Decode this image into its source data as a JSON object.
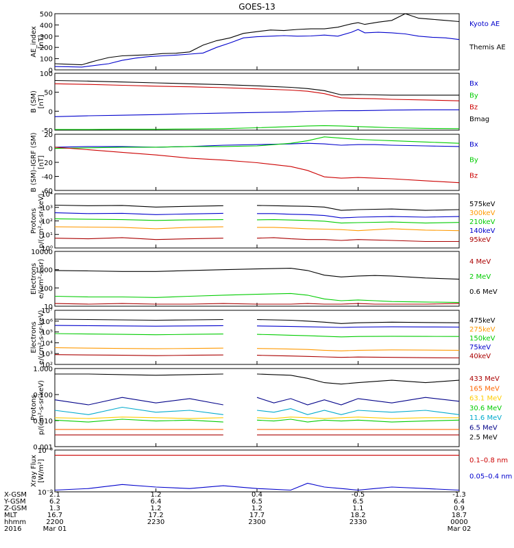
{
  "title": "GOES-13",
  "chart_data": [
    {
      "type": "line",
      "id": "ae",
      "ylabel": [
        "AE_index",
        "[nT]"
      ],
      "ylim": [
        0,
        500
      ],
      "yticks": [
        "0",
        "100",
        "200",
        "300",
        "400",
        "500"
      ],
      "x": [
        0,
        4,
        8,
        12,
        16,
        20,
        24,
        28,
        32,
        36,
        40,
        44,
        48,
        52,
        56,
        60,
        64,
        68,
        72,
        76,
        80,
        84,
        88,
        90,
        92,
        96,
        100,
        104,
        108,
        112,
        116,
        120
      ],
      "series": [
        {
          "name": "Kyoto AE",
          "color": "#0000cc",
          "values": [
            30,
            28,
            25,
            40,
            55,
            85,
            105,
            118,
            125,
            132,
            140,
            150,
            200,
            240,
            285,
            295,
            300,
            305,
            300,
            302,
            310,
            300,
            335,
            360,
            330,
            335,
            330,
            320,
            300,
            290,
            285,
            270
          ]
        },
        {
          "name": "Themis AE",
          "color": "#000000",
          "values": [
            55,
            50,
            45,
            80,
            110,
            125,
            130,
            135,
            145,
            148,
            160,
            220,
            260,
            285,
            325,
            340,
            355,
            350,
            360,
            365,
            365,
            380,
            410,
            420,
            405,
            425,
            440,
            500,
            460,
            450,
            440,
            430
          ]
        }
      ],
      "legend": [
        "Kyoto AE",
        "Themis AE"
      ]
    },
    {
      "type": "line",
      "id": "bsm",
      "ylabel": [
        "B (SM)",
        "[nT]"
      ],
      "ylim": [
        -60,
        130
      ],
      "yticks": [
        "-50",
        "0",
        "50",
        "100"
      ],
      "x": [
        0,
        10,
        20,
        30,
        40,
        50,
        60,
        70,
        75,
        80,
        85,
        90,
        95,
        100,
        110,
        120
      ],
      "series": [
        {
          "name": "Bx",
          "color": "#0000cc",
          "values": [
            -15,
            -12,
            -10,
            -8,
            -5,
            -3,
            -1,
            1,
            3,
            4,
            5,
            5,
            6,
            7,
            8,
            8
          ]
        },
        {
          "name": "By",
          "color": "#00cc00",
          "values": [
            -58,
            -58,
            -57,
            -57,
            -56,
            -55,
            -52,
            -48,
            -46,
            -45,
            -46,
            -48,
            -50,
            -52,
            -54,
            -55
          ]
        },
        {
          "name": "Bz",
          "color": "#cc0000",
          "values": [
            95,
            93,
            90,
            87,
            85,
            82,
            78,
            74,
            70,
            62,
            48,
            46,
            45,
            43,
            41,
            38
          ]
        },
        {
          "name": "Bmag",
          "color": "#000000",
          "values": [
            106,
            104,
            101,
            98,
            95,
            92,
            88,
            83,
            79,
            72,
            58,
            59,
            58,
            57,
            57,
            57
          ]
        }
      ],
      "legend": [
        "Bx",
        "By",
        "Bz",
        "Bmag"
      ]
    },
    {
      "type": "line",
      "id": "bigrf",
      "ylabel": [
        "B (SM)–IGRF (SM)",
        "[nT]"
      ],
      "ylim": [
        -65,
        22
      ],
      "yticks": [
        "-60",
        "-40",
        "-20",
        "0",
        "20"
      ],
      "x": [
        0,
        10,
        20,
        30,
        40,
        50,
        60,
        70,
        75,
        80,
        85,
        90,
        95,
        100,
        110,
        120
      ],
      "series": [
        {
          "name": "Bx",
          "color": "#0000cc",
          "values": [
            2,
            3,
            3,
            2,
            3,
            5,
            6,
            7,
            8,
            7,
            5,
            6,
            6,
            5,
            4,
            3
          ]
        },
        {
          "name": "By",
          "color": "#00cc00",
          "values": [
            0,
            1,
            2,
            2,
            3,
            3,
            4,
            8,
            12,
            18,
            16,
            14,
            13,
            12,
            10,
            8
          ]
        },
        {
          "name": "Bz",
          "color": "#cc0000",
          "values": [
            2,
            -2,
            -6,
            -10,
            -15,
            -18,
            -22,
            -28,
            -34,
            -44,
            -46,
            -45,
            -46,
            -47,
            -50,
            -53
          ]
        }
      ],
      "legend": [
        "Bx",
        "By",
        "Bz"
      ]
    },
    {
      "type": "line",
      "id": "protons-low",
      "ylabel": [
        "Protons",
        "p/(cm²-s-sr-keV)"
      ],
      "ylim": [
        1,
        100000
      ],
      "log": true,
      "yticks": [
        "10⁰",
        "10¹",
        "10²",
        "10³",
        "10⁴"
      ],
      "x": [
        0,
        10,
        20,
        30,
        40,
        50,
        55,
        60,
        65,
        70,
        75,
        80,
        85,
        90,
        100,
        110,
        120
      ],
      "series": [
        {
          "name": "575keV",
          "color": "#000000",
          "values": [
            9000,
            8000,
            8500,
            6000,
            7000,
            8000,
            null,
            8500,
            8000,
            7500,
            7000,
            6000,
            3000,
            3500,
            4000,
            3000,
            3500
          ]
        },
        {
          "name": "300keV",
          "color": "#ff9900",
          "values": [
            90,
            85,
            80,
            60,
            80,
            90,
            null,
            80,
            80,
            70,
            60,
            55,
            50,
            40,
            60,
            45,
            40
          ]
        },
        {
          "name": "210keV",
          "color": "#00cc00",
          "values": [
            500,
            450,
            420,
            350,
            400,
            420,
            null,
            400,
            420,
            380,
            350,
            300,
            200,
            220,
            250,
            200,
            230
          ]
        },
        {
          "name": "140keV",
          "color": "#0000cc",
          "values": [
            1800,
            1500,
            1600,
            1200,
            1400,
            1600,
            null,
            1500,
            1500,
            1300,
            1200,
            1000,
            600,
            700,
            800,
            700,
            800
          ]
        },
        {
          "name": "95keV",
          "color": "#aa0000",
          "values": [
            8,
            7,
            9,
            6,
            7,
            8,
            null,
            8,
            9,
            7,
            6,
            6,
            5,
            6,
            5,
            4,
            4
          ]
        }
      ],
      "legend": [
        "575keV",
        "300keV",
        "210keV",
        "140keV",
        "95keV"
      ]
    },
    {
      "type": "line",
      "id": "electrons-high",
      "ylabel": [
        "Electrons",
        "e/(cm²-s-sr)"
      ],
      "ylim": [
        10,
        10000
      ],
      "log": true,
      "yticks": [
        "10",
        "100",
        "1000",
        "10000"
      ],
      "x": [
        0,
        10,
        20,
        30,
        40,
        50,
        60,
        70,
        75,
        80,
        85,
        90,
        95,
        100,
        110,
        120
      ],
      "series": [
        {
          "name": "4 MeV",
          "color": "#aa0000",
          "values": [
            14,
            13,
            14,
            13,
            13,
            14,
            13,
            13,
            14,
            13,
            13,
            14,
            13,
            13,
            13,
            14
          ]
        },
        {
          "name": "2 MeV",
          "color": "#00cc00",
          "values": [
            35,
            32,
            32,
            30,
            35,
            40,
            45,
            50,
            40,
            25,
            20,
            22,
            20,
            18,
            17,
            16
          ]
        },
        {
          "name": "0.6 MeV",
          "color": "#000000",
          "values": [
            900,
            850,
            800,
            800,
            900,
            1000,
            1100,
            1200,
            900,
            500,
            400,
            450,
            480,
            450,
            350,
            300
          ]
        }
      ],
      "legend": [
        "4 MeV",
        "2 MeV",
        "0.6 MeV"
      ]
    },
    {
      "type": "line",
      "id": "electrons-low",
      "ylabel": [
        "Electrons",
        "e/(cm²-s-sr-keV)"
      ],
      "ylim": [
        100,
        10000000
      ],
      "log": true,
      "yticks": [
        "10²",
        "10³",
        "10⁴",
        "10⁵",
        "10⁶",
        "10⁷"
      ],
      "x": [
        0,
        10,
        20,
        30,
        40,
        50,
        55,
        60,
        65,
        70,
        75,
        80,
        85,
        90,
        100,
        110,
        120
      ],
      "series": [
        {
          "name": "475keV",
          "color": "#000000",
          "values": [
            1500000,
            1400000,
            1300000,
            1200000,
            1300000,
            1400000,
            null,
            1400000,
            1300000,
            1200000,
            1000000,
            800000,
            600000,
            700000,
            800000,
            750000,
            700000
          ]
        },
        {
          "name": "275keV",
          "color": "#ff9900",
          "values": [
            3500,
            3200,
            3000,
            2800,
            3000,
            3200,
            null,
            3000,
            2800,
            2600,
            2400,
            2000,
            1800,
            2000,
            2200,
            2100,
            2000
          ]
        },
        {
          "name": "150keV",
          "color": "#00cc00",
          "values": [
            70000,
            65000,
            60000,
            55000,
            60000,
            65000,
            null,
            60000,
            55000,
            50000,
            45000,
            40000,
            35000,
            38000,
            40000,
            39000,
            38000
          ]
        },
        {
          "name": "75keV",
          "color": "#0000cc",
          "values": [
            400000,
            380000,
            360000,
            340000,
            360000,
            380000,
            null,
            360000,
            340000,
            320000,
            300000,
            280000,
            260000,
            280000,
            300000,
            290000,
            280000
          ]
        },
        {
          "name": "40keV",
          "color": "#aa0000",
          "values": [
            800,
            750,
            700,
            650,
            700,
            750,
            null,
            700,
            650,
            600,
            550,
            500,
            450,
            480,
            450,
            420,
            400
          ]
        }
      ],
      "legend": [
        "475keV",
        "275keV",
        "150keV",
        "75keV",
        "40keV"
      ]
    },
    {
      "type": "line",
      "id": "protons-high",
      "ylabel": [
        "Protons",
        "p/(cm²-s-sr-keV)"
      ],
      "ylim": [
        0.001,
        1.5
      ],
      "log": true,
      "yticks": [
        "0.001",
        "0.010",
        "0.100",
        "1.000"
      ],
      "x": [
        0,
        10,
        20,
        30,
        40,
        50,
        55,
        60,
        65,
        70,
        75,
        80,
        85,
        90,
        100,
        110,
        120
      ],
      "series": [
        {
          "name": "433 MeV",
          "color": "#aa0000",
          "values": [
            0.003,
            0.003,
            0.003,
            0.003,
            0.003,
            0.003,
            null,
            0.003,
            0.003,
            0.003,
            0.003,
            0.003,
            0.003,
            0.003,
            0.003,
            0.003,
            0.003
          ]
        },
        {
          "name": "165 MeV",
          "color": "#ff6600",
          "values": [
            0.005,
            0.005,
            0.005,
            0.005,
            0.005,
            0.005,
            null,
            0.005,
            0.005,
            0.005,
            0.005,
            0.005,
            0.005,
            0.005,
            0.005,
            0.005,
            0.005
          ]
        },
        {
          "name": "63.1 MeV",
          "color": "#ffcc00",
          "values": [
            0.015,
            0.014,
            0.016,
            0.015,
            0.014,
            0.015,
            null,
            0.015,
            0.014,
            0.016,
            0.015,
            0.014,
            0.015,
            0.016,
            0.014,
            0.015,
            0.015
          ]
        },
        {
          "name": "30.6 MeV",
          "color": "#00cc00",
          "values": [
            0.012,
            0.01,
            0.013,
            0.011,
            0.012,
            0.01,
            null,
            0.012,
            0.011,
            0.013,
            0.01,
            0.012,
            0.011,
            0.012,
            0.01,
            0.011,
            0.012
          ]
        },
        {
          "name": "11.6 MeV",
          "color": "#00aacc",
          "values": [
            0.03,
            0.02,
            0.04,
            0.025,
            0.03,
            0.02,
            null,
            0.03,
            0.025,
            0.035,
            0.02,
            0.03,
            0.02,
            0.03,
            0.025,
            0.03,
            0.02
          ]
        },
        {
          "name": "6.5 MeV",
          "color": "#000088",
          "values": [
            0.08,
            0.05,
            0.1,
            0.06,
            0.09,
            0.05,
            null,
            0.1,
            0.06,
            0.09,
            0.05,
            0.08,
            0.05,
            0.09,
            0.06,
            0.1,
            0.07
          ]
        },
        {
          "name": "2.5 MeV",
          "color": "#000000",
          "values": [
            0.9,
            0.9,
            0.85,
            0.8,
            0.85,
            0.9,
            null,
            0.9,
            0.85,
            0.8,
            0.6,
            0.4,
            0.35,
            0.4,
            0.5,
            0.4,
            0.5
          ]
        }
      ],
      "legend": [
        "433 MeV",
        "165 MeV",
        "63.1 MeV",
        "30.6 MeV",
        "11.6 MeV",
        "6.5 MeV",
        "2.5 MeV"
      ]
    },
    {
      "type": "line",
      "id": "xray",
      "ylabel": [
        "Xray Flux",
        "[W/m²]"
      ],
      "ylim": [
        1e-09,
        1e-08
      ],
      "log": true,
      "yticks": [
        "10⁻⁹",
        "10⁻⁸"
      ],
      "x": [
        0,
        10,
        20,
        30,
        40,
        50,
        60,
        70,
        75,
        80,
        85,
        90,
        95,
        100,
        110,
        120
      ],
      "series": [
        {
          "name": "0.1–0.8 nm",
          "color": "#cc0000",
          "values": [
            7.5e-09,
            7.5e-09,
            7.5e-09,
            7.5e-09,
            7.5e-09,
            7.5e-09,
            7.5e-09,
            7.5e-09,
            7.5e-09,
            7.5e-09,
            7.5e-09,
            7.5e-09,
            7.5e-09,
            7.5e-09,
            7.5e-09,
            7.5e-09
          ]
        },
        {
          "name": "0.05–0.4 nm",
          "color": "#0000cc",
          "values": [
            1.1e-09,
            1.2e-09,
            1.5e-09,
            1.3e-09,
            1.2e-09,
            1.4e-09,
            1.2e-09,
            1.1e-09,
            1.6e-09,
            1.3e-09,
            1.2e-09,
            1.1e-09,
            1.2e-09,
            1.3e-09,
            1.2e-09,
            1.1e-09
          ]
        }
      ],
      "legend": [
        "0.1–0.8 nm",
        "0.05–0.4 nm"
      ]
    }
  ],
  "time_table": {
    "row_labels": [
      "X-GSM",
      "Y-GSM",
      "Z-GSM",
      "MLT",
      "hhmm",
      "2016"
    ],
    "columns": [
      [
        "2.1",
        "6.2",
        "1.3",
        "16.7",
        "2200",
        "Mar 01"
      ],
      [
        "1.2",
        "6.4",
        "1.2",
        "17.2",
        "2230",
        ""
      ],
      [
        "0.4",
        "6.5",
        "1.2",
        "17.7",
        "2300",
        ""
      ],
      [
        "-0.5",
        "6.5",
        "1.1",
        "18.2",
        "2330",
        ""
      ],
      [
        "-1.3",
        "6.4",
        "0.9",
        "18.7",
        "0000",
        "Mar 02"
      ]
    ]
  }
}
